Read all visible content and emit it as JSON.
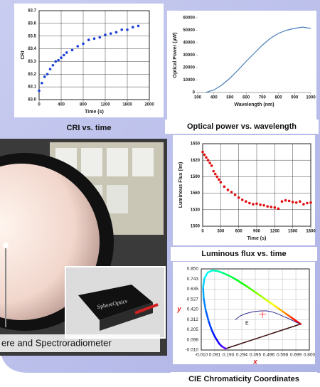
{
  "chart_data": [
    {
      "type": "scatter",
      "title": "CRI vs. time",
      "x_label": "Time (s)",
      "y_label": "CRI",
      "color": "#1a3fd6",
      "grid": true,
      "xlim": [
        0,
        2000
      ],
      "xticks": [
        0,
        400,
        800,
        1200,
        1600,
        2000
      ],
      "ylim": [
        83.0,
        83.7
      ],
      "yticks": [
        {
          "value": 83.0,
          "label": "83.0"
        },
        83.1,
        83.2,
        83.3,
        83.4,
        83.5,
        83.6,
        83.7
      ],
      "x": [
        0,
        50,
        100,
        150,
        200,
        250,
        300,
        350,
        400,
        450,
        500,
        600,
        700,
        800,
        900,
        1000,
        1100,
        1200,
        1300,
        1400,
        1500,
        1600,
        1700,
        1800
      ],
      "values": [
        83.07,
        83.13,
        83.18,
        83.2,
        83.24,
        83.27,
        83.3,
        83.31,
        83.33,
        83.35,
        83.37,
        83.39,
        83.42,
        83.44,
        83.47,
        83.48,
        83.49,
        83.51,
        83.52,
        83.53,
        83.55,
        83.55,
        83.57,
        83.58
      ]
    },
    {
      "type": "line",
      "title": "Optical power vs. wavelength",
      "x_label": "Wavelength (nm)",
      "y_label": "Optical Power (µW)",
      "color": "#4a7ebb",
      "grid": false,
      "xlim": [
        300,
        1000
      ],
      "xticks": [
        300,
        400,
        500,
        600,
        700,
        800,
        900,
        1000
      ],
      "ylim": [
        0,
        60000
      ],
      "yticks": [
        0,
        10000,
        20000,
        30000,
        40000,
        50000,
        60000
      ],
      "x": [
        350,
        400,
        450,
        500,
        550,
        600,
        650,
        700,
        750,
        800,
        850,
        900,
        950,
        1000
      ],
      "values": [
        0,
        2000,
        6000,
        11500,
        18000,
        25000,
        31500,
        38000,
        43500,
        47500,
        50000,
        51500,
        52500,
        51500
      ]
    },
    {
      "type": "scatter",
      "title": "Luminous flux vs. time",
      "x_label": "Time (s)",
      "y_label": "Luminous Flux (lm)",
      "color": "#e01010",
      "grid": true,
      "xlim": [
        0,
        1800
      ],
      "xticks": [
        0,
        300,
        600,
        900,
        1200,
        1500,
        1800
      ],
      "ylim": [
        1500,
        1650
      ],
      "yticks": [
        1500,
        1530,
        1560,
        1590,
        1620,
        1650
      ],
      "x": [
        0,
        30,
        60,
        90,
        120,
        150,
        180,
        210,
        240,
        270,
        300,
        360,
        420,
        480,
        540,
        600,
        660,
        720,
        780,
        840,
        900,
        960,
        1020,
        1080,
        1140,
        1200,
        1260,
        1320,
        1380,
        1440,
        1500,
        1560,
        1620,
        1680,
        1740,
        1800
      ],
      "values": [
        1635,
        1630,
        1625,
        1620,
        1615,
        1610,
        1600,
        1595,
        1590,
        1585,
        1580,
        1572,
        1566,
        1562,
        1557,
        1552,
        1548,
        1545,
        1542,
        1540,
        1541,
        1539,
        1538,
        1536,
        1535,
        1534,
        1532,
        1545,
        1547,
        1546,
        1544,
        1543,
        1545,
        1540,
        1542,
        1543
      ]
    },
    {
      "type": "cie",
      "title": "CIE Chromaticity Coordinates",
      "x_label": "x",
      "y_label": "y",
      "grid": true,
      "xlim": [
        -0.01,
        0.8
      ],
      "xticks": [
        {
          "value": -0.01,
          "label": "-0.010"
        },
        0.091,
        0.193,
        0.294,
        0.395,
        0.496,
        0.598,
        0.699,
        {
          "value": 0.8,
          "label": "0.800"
        }
      ],
      "ylim": [
        -0.01,
        0.85
      ],
      "yticks": [
        {
          "value": -0.01,
          "label": "-0.010"
        },
        0.098,
        0.205,
        0.312,
        {
          "value": 0.42,
          "label": "0.420"
        },
        0.527,
        0.635,
        0.743,
        {
          "value": 0.85,
          "label": "0.850"
        }
      ],
      "series": [
        {
          "x": [
            0.1741,
            0.1689,
            0.144,
            0.1241,
            0.0913,
            0.0687,
            0.0454,
            0.0235,
            0.0082,
            0.0039,
            0.0139,
            0.0389,
            0.0743,
            0.1142,
            0.1547,
            0.1929,
            0.2296,
            0.2658,
            0.3016,
            0.3373,
            0.3731,
            0.4087,
            0.4441,
            0.4788,
            0.5125,
            0.5448,
            0.5752,
            0.6029,
            0.627,
            0.6482,
            0.6658,
            0.6915,
            0.7347
          ],
          "values": [
            0.005,
            0.0069,
            0.0297,
            0.0578,
            0.1327,
            0.2007,
            0.295,
            0.4127,
            0.5384,
            0.6548,
            0.7502,
            0.812,
            0.8338,
            0.8262,
            0.8059,
            0.7816,
            0.7543,
            0.7243,
            0.6923,
            0.6589,
            0.6245,
            0.5896,
            0.5547,
            0.5202,
            0.4866,
            0.4544,
            0.4242,
            0.3965,
            0.3725,
            0.3514,
            0.334,
            0.3083,
            0.2653
          ]
        },
        {
          "color": "#2a2a90",
          "x": [
            0.245,
            0.28,
            0.32,
            0.36,
            0.4,
            0.44,
            0.48,
            0.52,
            0.56,
            0.6,
            0.65,
            0.7,
            0.735
          ],
          "values": [
            0.31,
            0.35,
            0.375,
            0.39,
            0.4,
            0.405,
            0.405,
            0.395,
            0.375,
            0.35,
            0.32,
            0.285,
            0.265
          ]
        },
        {
          "color": "#ff5050",
          "marker": "cross",
          "x": [
            0.45
          ],
          "values": [
            0.37
          ]
        }
      ],
      "annotations": [
        {
          "text": "E",
          "x": 0.333,
          "y": 0.333
        }
      ]
    }
  ],
  "photo": {
    "caption": "ere and Spectroradiometer",
    "device_label": "SphereOptics"
  }
}
